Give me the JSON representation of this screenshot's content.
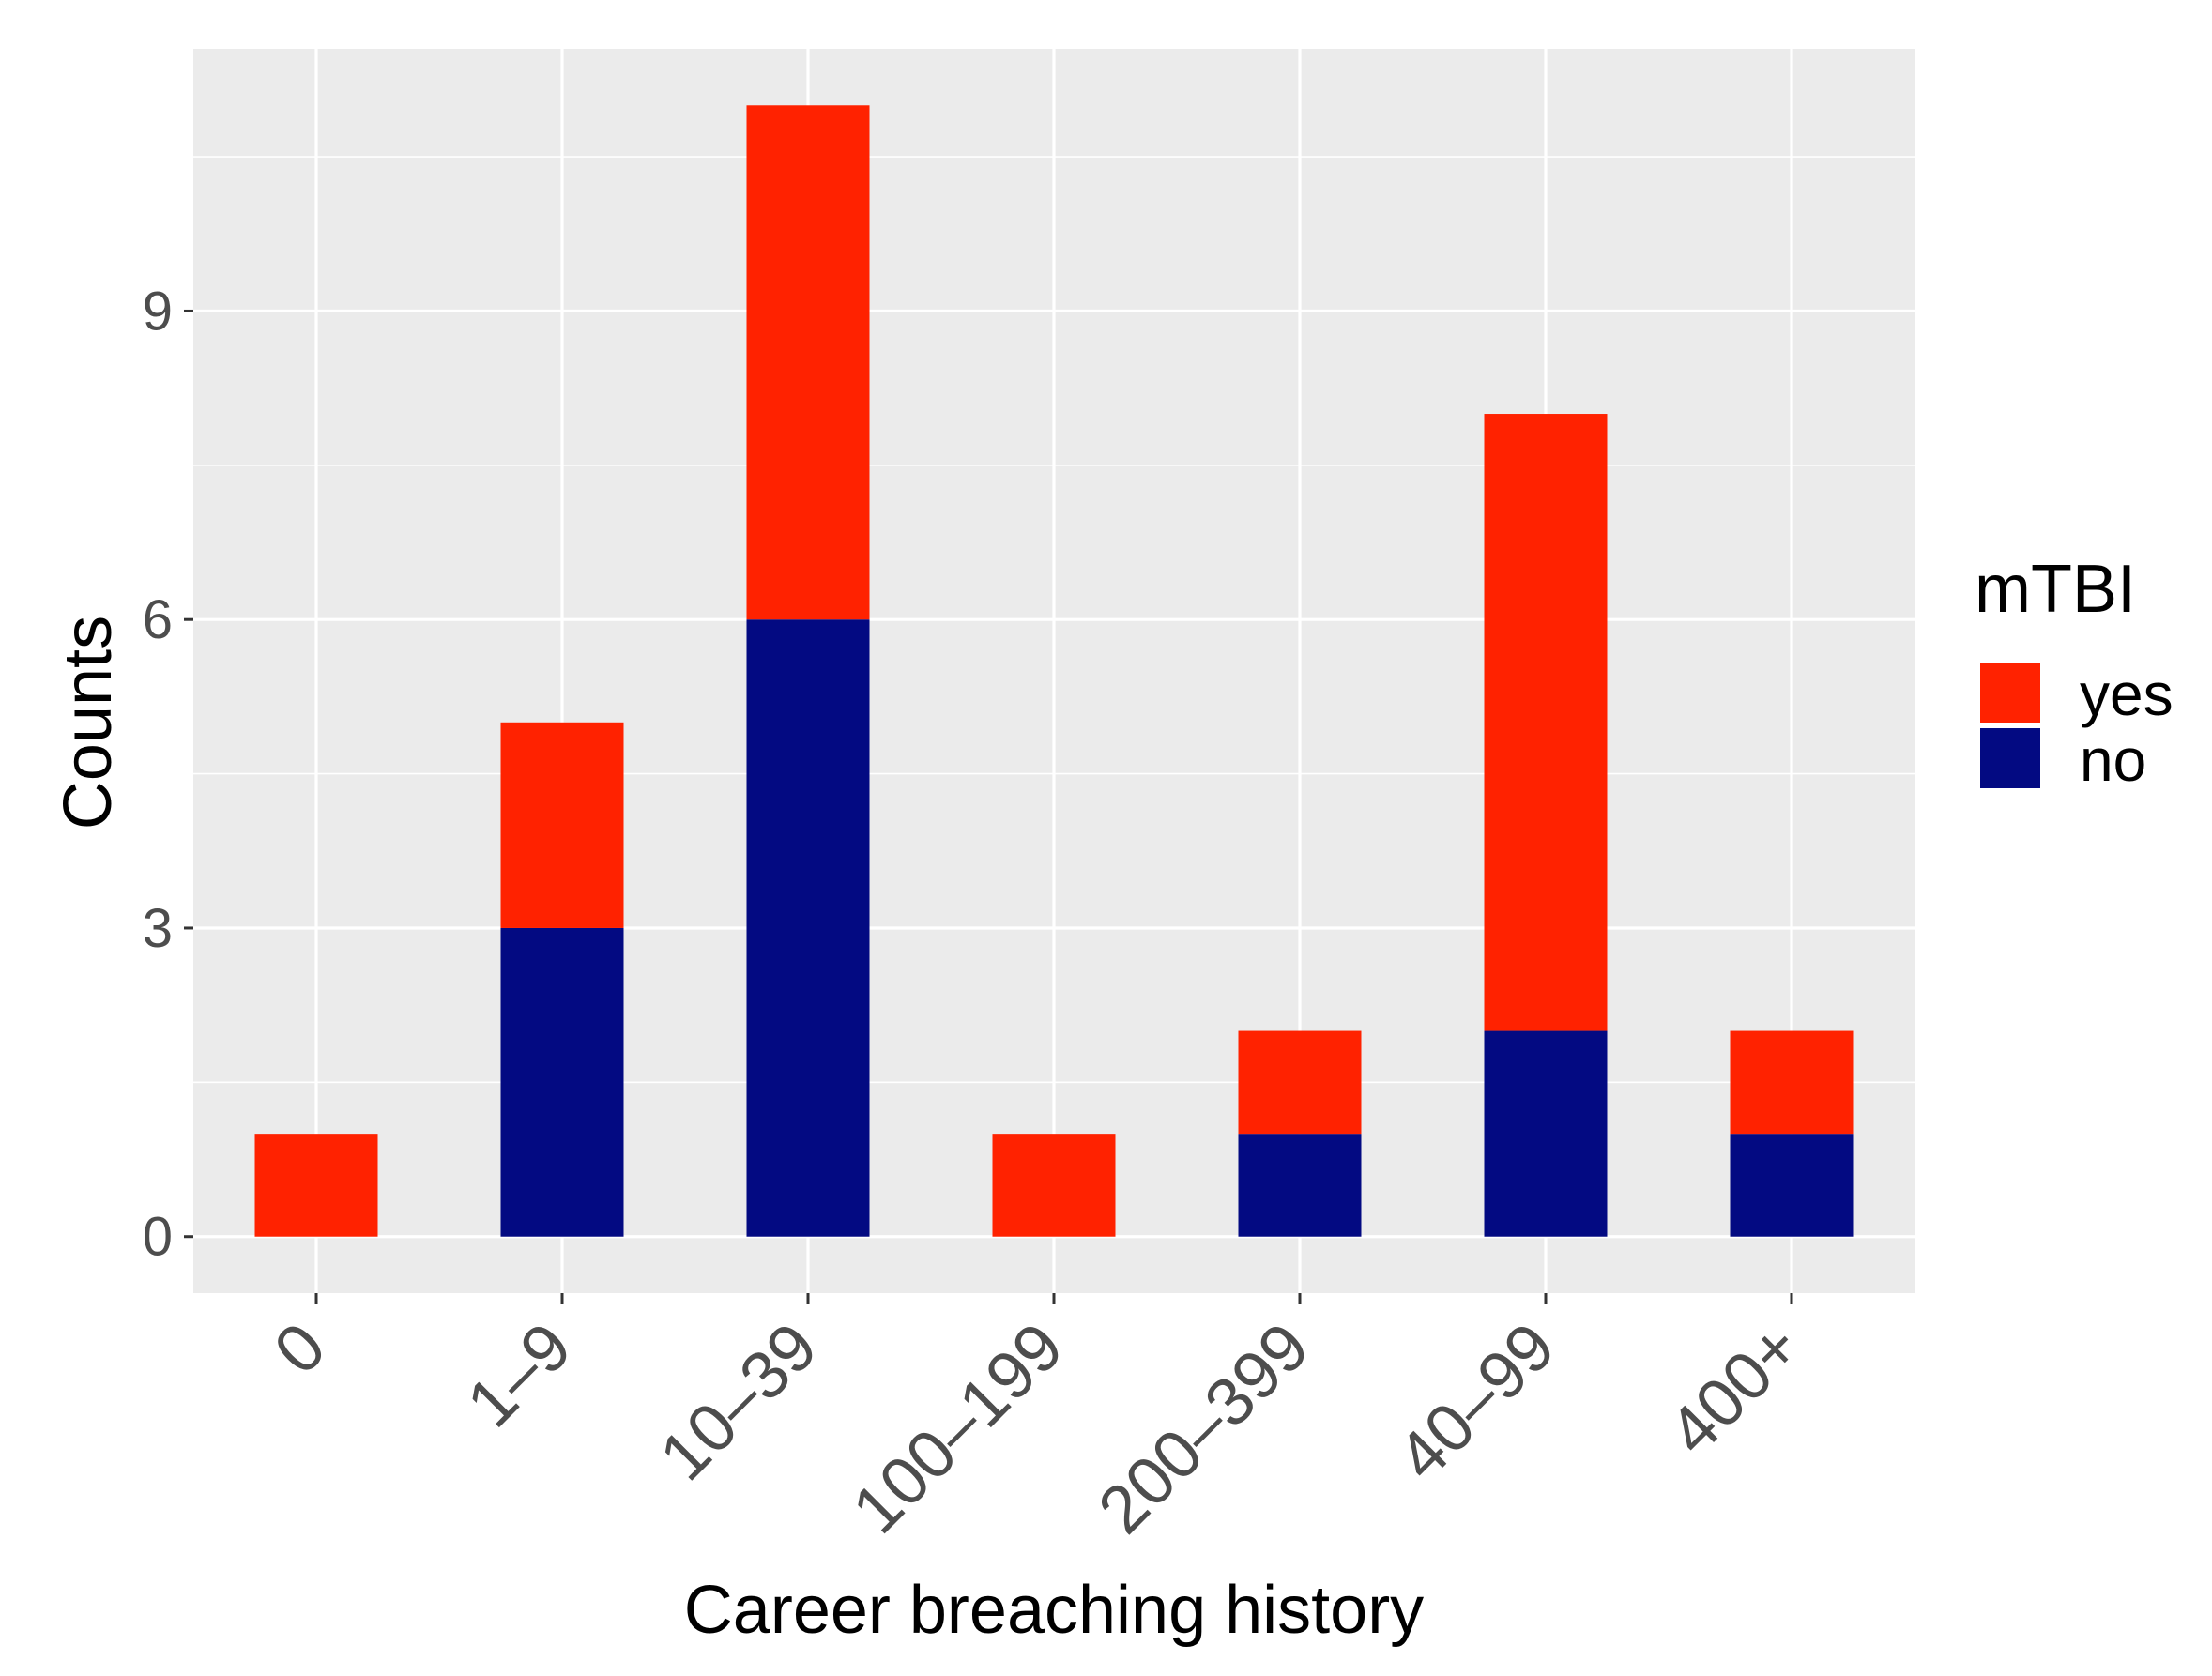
{
  "chart_data": {
    "type": "bar",
    "stacked": true,
    "title": "",
    "xlabel": "Career breaching history",
    "ylabel": "Counts",
    "categories": [
      "0",
      "1–9",
      "10–39",
      "100–199",
      "200–399",
      "40–99",
      "400+"
    ],
    "series": [
      {
        "name": "yes",
        "values": [
          1,
          2,
          5,
          1,
          1,
          6,
          1
        ],
        "color": "#ff2200"
      },
      {
        "name": "no",
        "values": [
          0,
          3,
          6,
          0,
          1,
          2,
          1
        ],
        "color": "#030a82"
      }
    ],
    "ylim": [
      -0.55,
      11.55
    ],
    "yticks": [
      0,
      3,
      6,
      9
    ],
    "grid": true,
    "legend": {
      "title": "mTBI",
      "placement": "right",
      "entries": [
        {
          "label": "yes",
          "color": "#ff2200"
        },
        {
          "label": "no",
          "color": "#030a82"
        }
      ]
    },
    "colors": {
      "panel_background": "#ebebeb",
      "grid_line": "#ffffff",
      "tick_text": "#4d4d4d",
      "axis_title": "#000000"
    }
  }
}
